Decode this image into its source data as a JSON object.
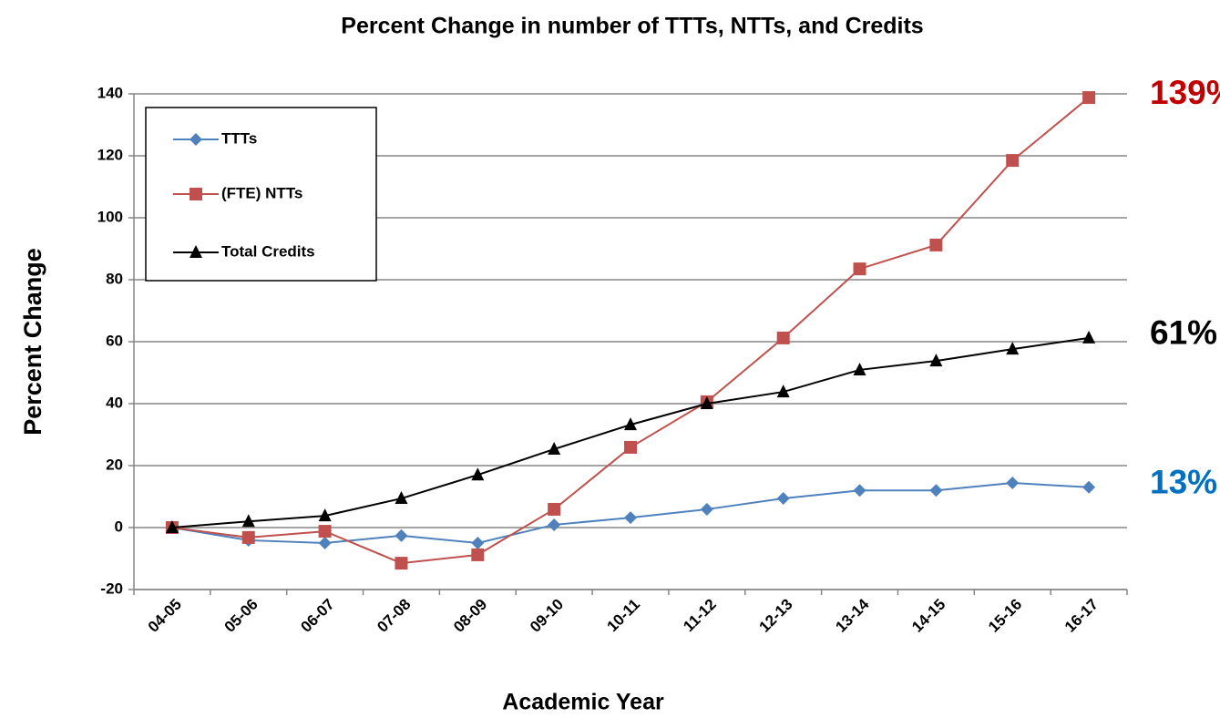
{
  "chart_data": {
    "type": "line",
    "title": "Percent Change in number of TTTs, NTTs, and Credits",
    "x_label": "Academic Year",
    "y_label": "Percent Change",
    "categories": [
      "04-05",
      "05-06",
      "06-07",
      "07-08",
      "08-09",
      "09-10",
      "10-11",
      "11-12",
      "12-13",
      "13-14",
      "14-15",
      "15-16",
      "16-17"
    ],
    "series": [
      {
        "name": "TTTs",
        "color": "#4f81bd",
        "marker": "diamond",
        "end_label": "13%",
        "end_label_color": "#0070c0",
        "values": [
          0,
          -4.1,
          -5,
          -2.6,
          -5,
          0.9,
          3.2,
          5.9,
          9.4,
          12,
          12,
          14.4,
          13
        ]
      },
      {
        "name": "(FTE) NTTs",
        "color": "#c0504d",
        "marker": "square",
        "end_label": "139%",
        "end_label_color": "#c00000",
        "values": [
          0,
          -3.2,
          -1.2,
          -11.5,
          -8.8,
          5.9,
          25.9,
          40.6,
          61.2,
          83.5,
          91.2,
          118.5,
          138.8
        ]
      },
      {
        "name": "Total Credits",
        "color": "#000000",
        "marker": "triangle",
        "end_label": "61%",
        "end_label_color": "#000000",
        "values": [
          0,
          2,
          3.8,
          9.4,
          17,
          25.3,
          33.2,
          40,
          43.8,
          50.9,
          53.8,
          57.6,
          61.2
        ]
      }
    ],
    "ylim": [
      -20,
      140
    ],
    "yticks": [
      -20,
      0,
      20,
      40,
      60,
      80,
      100,
      120,
      140
    ],
    "grid": true,
    "legend": "top-left"
  }
}
